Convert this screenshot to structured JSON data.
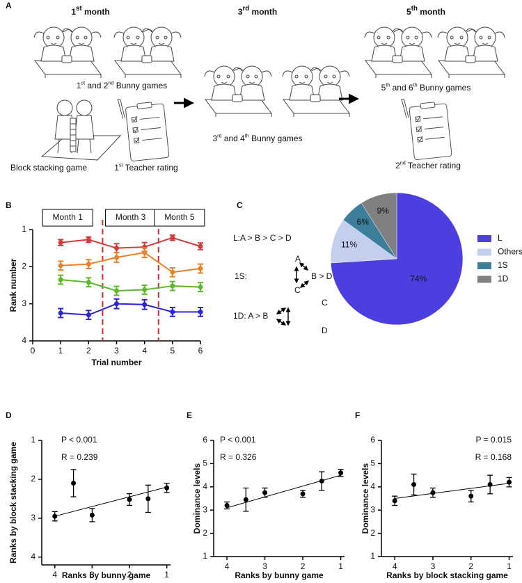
{
  "panel_labels": [
    "A",
    "B",
    "C",
    "D",
    "E",
    "F"
  ],
  "panel_a": {
    "months": [
      [
        "1",
        "st",
        " month"
      ],
      [
        "3",
        "rd",
        " month"
      ],
      [
        "5",
        "th",
        " month"
      ]
    ],
    "captions": [
      [
        "1",
        "st",
        " and 2",
        "nd",
        " Bunny games"
      ],
      [
        "Block stacking game"
      ],
      [
        "1",
        "st",
        " Teacher rating"
      ],
      [
        "3",
        "rd",
        " and 4",
        "th",
        " Bunny games"
      ],
      [
        "5",
        "th",
        " and 6",
        "th",
        " Bunny games"
      ],
      [
        "2",
        "nd",
        " Teacher rating"
      ]
    ]
  },
  "panel_c": {
    "texts": [
      "L:A > B > C > D",
      "1S:",
      "A",
      "B > D",
      "C",
      "1D: A > B",
      "C",
      "D"
    ]
  },
  "chart_data": [
    {
      "type": "line",
      "x": [
        1,
        2,
        3,
        4,
        5,
        6
      ],
      "xlim": [
        0,
        6
      ],
      "xticks": [
        0,
        1,
        2,
        3,
        4,
        5,
        6
      ],
      "ylim": [
        1,
        4
      ],
      "yticks": [
        1,
        2,
        3,
        4
      ],
      "invert_y": true,
      "xlabel": "Trial number",
      "ylabel": "Rank number",
      "dividers": [
        2.5,
        4.5
      ],
      "divider_color": "#d42a2a",
      "annotations": [
        "Month 1",
        "Month 3",
        "Month 5"
      ],
      "series": [
        {
          "color": "#d23b3b",
          "values": [
            1.35,
            1.27,
            1.5,
            1.47,
            1.22,
            1.45
          ],
          "errors": [
            0.08,
            0.07,
            0.12,
            0.12,
            0.07,
            0.09
          ]
        },
        {
          "color": "#e9822a",
          "values": [
            1.97,
            1.93,
            1.75,
            1.62,
            2.15,
            2.05
          ],
          "errors": [
            0.12,
            0.12,
            0.13,
            0.13,
            0.12,
            0.12
          ]
        },
        {
          "color": "#5cb82a",
          "values": [
            2.35,
            2.42,
            2.65,
            2.62,
            2.52,
            2.55
          ],
          "errors": [
            0.12,
            0.12,
            0.12,
            0.12,
            0.12,
            0.12
          ]
        },
        {
          "color": "#2f23d6",
          "values": [
            3.25,
            3.3,
            3.0,
            3.02,
            3.22,
            3.22
          ],
          "errors": [
            0.12,
            0.12,
            0.13,
            0.13,
            0.12,
            0.12
          ]
        }
      ]
    },
    {
      "type": "pie",
      "categories": [
        "L",
        "Others",
        "1S",
        "1D"
      ],
      "values": [
        74,
        11,
        6,
        9
      ],
      "value_labels": [
        "74%",
        "11%",
        "6%",
        "9%"
      ],
      "colors": [
        "#4b3fe0",
        "#c4cff0",
        "#3d7f9a",
        "#808080"
      ]
    },
    {
      "type": "scatter",
      "x": [
        4,
        3.5,
        3,
        2,
        1.5,
        1
      ],
      "values": [
        2.95,
        2.1,
        2.92,
        2.52,
        2.5,
        2.22
      ],
      "errors": [
        0.12,
        0.35,
        0.17,
        0.15,
        0.35,
        0.12
      ],
      "xlim": [
        0.9,
        4.35
      ],
      "invert_x": true,
      "xticks": [
        4,
        3,
        2,
        1
      ],
      "ylim": [
        1,
        4.2
      ],
      "invert_y": true,
      "yticks": [
        1,
        2,
        3,
        4
      ],
      "fit_x": [
        4,
        1
      ],
      "fit_y": [
        2.95,
        2.2
      ],
      "annotations": [
        "P < 0.001",
        "R = 0.239"
      ],
      "xlabel": "Ranks by bunny game",
      "ylabel": "Ranks by block stacking game",
      "color": "#000000"
    },
    {
      "type": "scatter",
      "x": [
        4,
        3.5,
        3,
        2,
        1.5,
        1
      ],
      "values": [
        3.2,
        3.45,
        3.75,
        3.7,
        4.25,
        4.6
      ],
      "errors": [
        0.15,
        0.5,
        0.2,
        0.15,
        0.4,
        0.15
      ],
      "xlim": [
        0.9,
        4.35
      ],
      "invert_x": true,
      "xticks": [
        4,
        3,
        2,
        1
      ],
      "ylim": [
        1,
        6
      ],
      "yticks": [
        1,
        2,
        3,
        4,
        5,
        6
      ],
      "fit_x": [
        4,
        1
      ],
      "fit_y": [
        3.1,
        4.5
      ],
      "annotations": [
        "P < 0.001",
        "R = 0.326"
      ],
      "xlabel": "Ranks by bunny game",
      "ylabel": "Dominance levels",
      "color": "#000000"
    },
    {
      "type": "scatter",
      "x": [
        4,
        3.5,
        3,
        2,
        1.5,
        1
      ],
      "values": [
        3.4,
        4.1,
        3.75,
        3.6,
        4.1,
        4.2
      ],
      "errors": [
        0.2,
        0.45,
        0.2,
        0.25,
        0.4,
        0.2
      ],
      "xlim": [
        0.9,
        4.35
      ],
      "invert_x": true,
      "xticks": [
        4,
        3,
        2,
        1
      ],
      "ylim": [
        1,
        6
      ],
      "yticks": [
        1,
        2,
        3,
        4,
        5,
        6
      ],
      "fit_x": [
        4,
        1
      ],
      "fit_y": [
        3.5,
        4.15
      ],
      "annotations": [
        "P = 0.015",
        "R = 0.168"
      ],
      "xlabel": "Ranks by block stacking game",
      "ylabel": "Dominance levels",
      "color": "#000000"
    }
  ]
}
